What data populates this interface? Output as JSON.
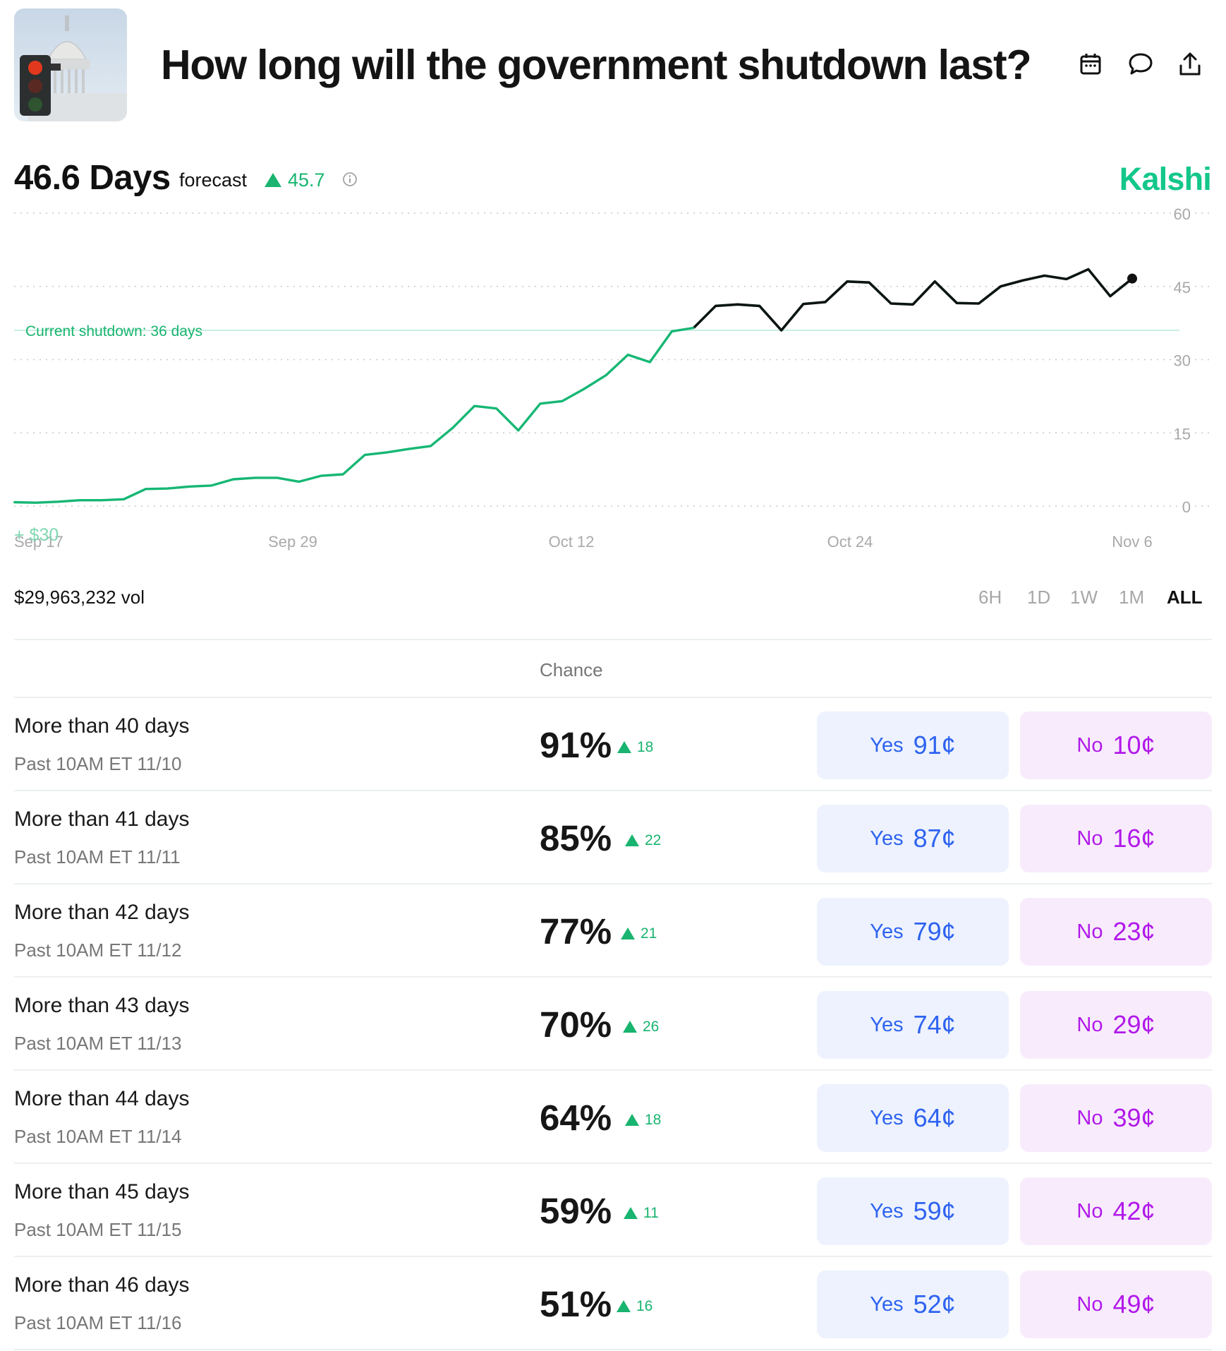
{
  "header": {
    "title": "How long will the government shutdown last?"
  },
  "forecast": {
    "value": "46.6 Days",
    "label": "forecast",
    "delta": "45.7",
    "brand": "Kalshi"
  },
  "chart_data": {
    "type": "line",
    "title": "",
    "xlabel": "",
    "ylabel": "",
    "ylim": [
      0,
      60
    ],
    "yticks": [
      "60",
      "45",
      "30",
      "15",
      "0"
    ],
    "xticks": [
      "Sep 17",
      "Sep 29",
      "Oct 12",
      "Oct 24",
      "Nov 6"
    ],
    "grid": true,
    "reference_line": {
      "label": "Current shutdown: 36 days",
      "value": 36
    },
    "pnl_label": "+ $30",
    "series": [
      {
        "values": [
          [
            "Sep 17",
            0.8
          ],
          [
            "Sep 18",
            0.7
          ],
          [
            "Sep 19",
            0.9
          ],
          [
            "Sep 20",
            1.2
          ],
          [
            "Sep 21",
            1.2
          ],
          [
            "Sep 22",
            1.4
          ],
          [
            "Sep 23",
            3.5
          ],
          [
            "Sep 24",
            3.6
          ],
          [
            "Sep 25",
            4.0
          ],
          [
            "Sep 26",
            4.2
          ],
          [
            "Sep 27",
            5.5
          ],
          [
            "Sep 28",
            5.8
          ],
          [
            "Sep 29",
            5.8
          ],
          [
            "Sep 30",
            5.0
          ],
          [
            "Oct 1",
            6.2
          ],
          [
            "Oct 2",
            6.5
          ],
          [
            "Oct 3",
            10.5
          ],
          [
            "Oct 4",
            11.0
          ],
          [
            "Oct 5",
            11.7
          ],
          [
            "Oct 6",
            12.3
          ],
          [
            "Oct 7",
            16.0
          ],
          [
            "Oct 8",
            20.5
          ],
          [
            "Oct 9",
            20.0
          ],
          [
            "Oct 10",
            15.5
          ],
          [
            "Oct 11",
            21.0
          ],
          [
            "Oct 12",
            21.5
          ],
          [
            "Oct 13",
            24.0
          ],
          [
            "Oct 14",
            26.8
          ],
          [
            "Oct 15",
            31.0
          ],
          [
            "Oct 16",
            29.5
          ],
          [
            "Oct 17",
            35.8
          ],
          [
            "Oct 18",
            36.5
          ],
          [
            "Oct 19",
            41.0
          ],
          [
            "Oct 20",
            41.3
          ],
          [
            "Oct 21",
            41.0
          ],
          [
            "Oct 22",
            36.0
          ],
          [
            "Oct 23",
            41.4
          ],
          [
            "Oct 24",
            41.8
          ],
          [
            "Oct 25",
            46.0
          ],
          [
            "Oct 26",
            45.8
          ],
          [
            "Oct 27",
            41.5
          ],
          [
            "Oct 28",
            41.3
          ],
          [
            "Oct 29",
            46.0
          ],
          [
            "Oct 30",
            41.6
          ],
          [
            "Oct 31",
            41.5
          ],
          [
            "Nov 1",
            45.0
          ],
          [
            "Nov 2",
            46.2
          ],
          [
            "Nov 3",
            47.2
          ],
          [
            "Nov 4",
            46.5
          ],
          [
            "Nov 5",
            48.5
          ],
          [
            "Nov 6",
            43.0
          ],
          [
            "Nov 7",
            46.6
          ]
        ]
      }
    ]
  },
  "market": {
    "volume": "$29,963,232 vol",
    "ranges": [
      "6H",
      "1D",
      "1W",
      "1M",
      "ALL"
    ],
    "active_range": "ALL",
    "chance_header": "Chance"
  },
  "rows": [
    {
      "name": "More than 40 days",
      "sub": "Past 10AM ET 11/10",
      "pct": "91%",
      "delta": "18",
      "yes_label": "Yes",
      "yes_price": "91¢",
      "no_label": "No",
      "no_price": "10¢"
    },
    {
      "name": "More than 41 days",
      "sub": "Past 10AM ET 11/11",
      "pct": "85%",
      "delta": "22",
      "yes_label": "Yes",
      "yes_price": "87¢",
      "no_label": "No",
      "no_price": "16¢"
    },
    {
      "name": "More than 42 days",
      "sub": "Past 10AM ET 11/12",
      "pct": "77%",
      "delta": "21",
      "yes_label": "Yes",
      "yes_price": "79¢",
      "no_label": "No",
      "no_price": "23¢"
    },
    {
      "name": "More than 43 days",
      "sub": "Past 10AM ET 11/13",
      "pct": "70%",
      "delta": "26",
      "yes_label": "Yes",
      "yes_price": "74¢",
      "no_label": "No",
      "no_price": "29¢"
    },
    {
      "name": "More than 44 days",
      "sub": "Past 10AM ET 11/14",
      "pct": "64%",
      "delta": "18",
      "yes_label": "Yes",
      "yes_price": "64¢",
      "no_label": "No",
      "no_price": "39¢"
    },
    {
      "name": "More than 45 days",
      "sub": "Past 10AM ET 11/15",
      "pct": "59%",
      "delta": "11",
      "yes_label": "Yes",
      "yes_price": "59¢",
      "no_label": "No",
      "no_price": "42¢"
    },
    {
      "name": "More than 46 days",
      "sub": "Past 10AM ET 11/16",
      "pct": "51%",
      "delta": "16",
      "yes_label": "Yes",
      "yes_price": "52¢",
      "no_label": "No",
      "no_price": "49¢"
    }
  ]
}
